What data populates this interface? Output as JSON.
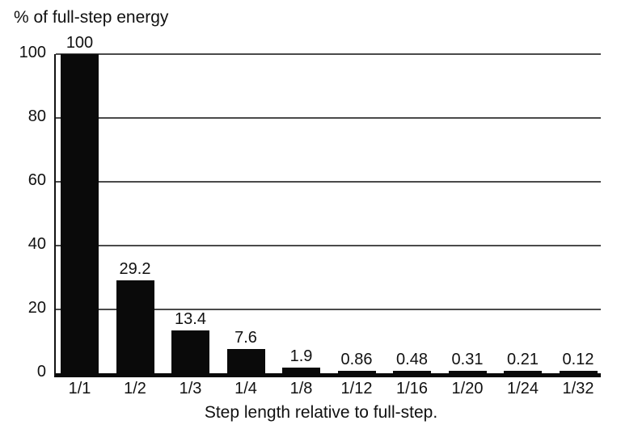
{
  "chart_data": {
    "type": "bar",
    "title": "% of full-step energy",
    "xlabel": "Step length relative to full-step.",
    "ylabel": "",
    "categories": [
      "1/1",
      "1/2",
      "1/3",
      "1/4",
      "1/8",
      "1/12",
      "1/16",
      "1/20",
      "1/24",
      "1/32"
    ],
    "values": [
      100,
      29.2,
      13.4,
      7.6,
      1.9,
      0.86,
      0.48,
      0.31,
      0.21,
      0.12
    ],
    "value_labels": [
      "100",
      "29.2",
      "13.4",
      "7.6",
      "1.9",
      "0.86",
      "0.48",
      "0.31",
      "0.21",
      "0.12"
    ],
    "ylim": [
      0,
      100
    ],
    "yticks": [
      0,
      20,
      40,
      60,
      80,
      100
    ],
    "grid": true,
    "legend": "none",
    "bar_color": "#0a0a0a",
    "gridline_color": "#4a4a4a",
    "axis_color": "#141414",
    "text_color": "#111111"
  }
}
